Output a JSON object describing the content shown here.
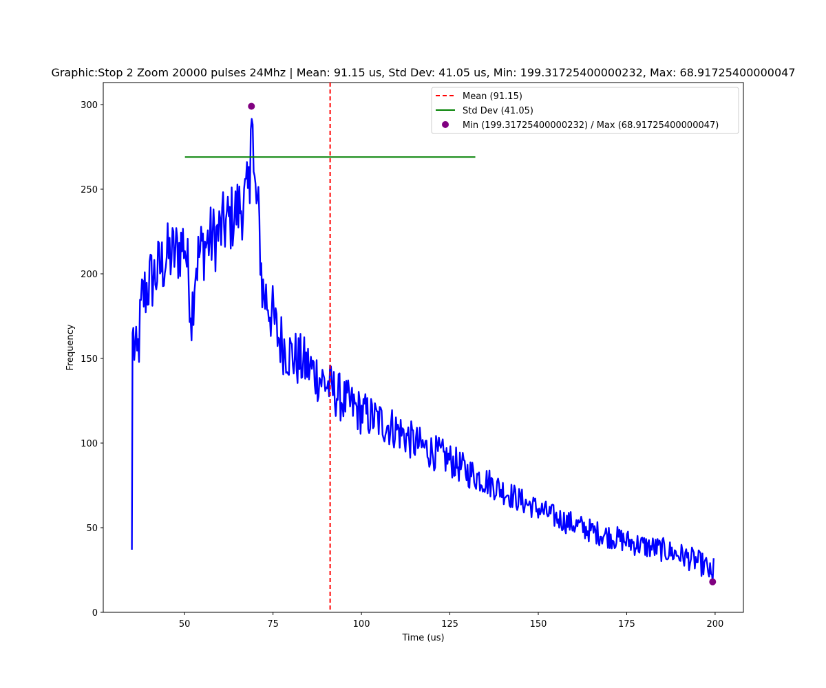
{
  "chart_data": {
    "type": "line",
    "title": "Graphic:Stop 2 Zoom 20000 pulses 24Mhz | Mean: 91.15 us, Std Dev: 41.05 us, Min: 199.31725400000232, Max: 68.91725400000047",
    "xlabel": "Time (us)",
    "ylabel": "Frequency",
    "xlim": [
      27,
      208
    ],
    "ylim": [
      0,
      313
    ],
    "xticks": [
      50,
      75,
      100,
      125,
      150,
      175,
      200
    ],
    "yticks": [
      0,
      50,
      100,
      150,
      200,
      250,
      300
    ],
    "legend_position": "top-right",
    "legend": {
      "mean": "Mean (91.15)",
      "std": "Std Dev (41.05)",
      "minmax": "Min (199.31725400000232) / Max (68.91725400000047)"
    },
    "colors": {
      "series": "#0000ff",
      "mean": "#ff0000",
      "std": "#008000",
      "markers": "#800080"
    },
    "mean_line": {
      "x": 91.15
    },
    "std_line": {
      "y": 269,
      "x": [
        50.1,
        132.2
      ]
    },
    "markers": [
      {
        "x": 68.9,
        "y": 299
      },
      {
        "x": 199.3,
        "y": 18
      }
    ],
    "series_anchors": [
      [
        35.1,
        37
      ],
      [
        35.3,
        165
      ],
      [
        36.5,
        145
      ],
      [
        38,
        185
      ],
      [
        40,
        195
      ],
      [
        42,
        200
      ],
      [
        45,
        210
      ],
      [
        48,
        213
      ],
      [
        50,
        220
      ],
      [
        51.5,
        190
      ],
      [
        52,
        175
      ],
      [
        53,
        205
      ],
      [
        55,
        215
      ],
      [
        57,
        220
      ],
      [
        59,
        222
      ],
      [
        61,
        228
      ],
      [
        63,
        232
      ],
      [
        65,
        238
      ],
      [
        67,
        242
      ],
      [
        68.5,
        250
      ],
      [
        69,
        262
      ],
      [
        71,
        232
      ],
      [
        72,
        190
      ],
      [
        74,
        182
      ],
      [
        76,
        165
      ],
      [
        78,
        158
      ],
      [
        80,
        152
      ],
      [
        85,
        145
      ],
      [
        90,
        135
      ],
      [
        95,
        125
      ],
      [
        100,
        118
      ],
      [
        105,
        113
      ],
      [
        110,
        108
      ],
      [
        115,
        100
      ],
      [
        120,
        95
      ],
      [
        125,
        90
      ],
      [
        130,
        83
      ],
      [
        135,
        78
      ],
      [
        140,
        72
      ],
      [
        145,
        66
      ],
      [
        150,
        61
      ],
      [
        155,
        56
      ],
      [
        160,
        52
      ],
      [
        165,
        48
      ],
      [
        170,
        45
      ],
      [
        175,
        42
      ],
      [
        180,
        39
      ],
      [
        185,
        37
      ],
      [
        190,
        34
      ],
      [
        195,
        30
      ],
      [
        198,
        26
      ],
      [
        199.3,
        18
      ],
      [
        199.6,
        32
      ]
    ]
  }
}
